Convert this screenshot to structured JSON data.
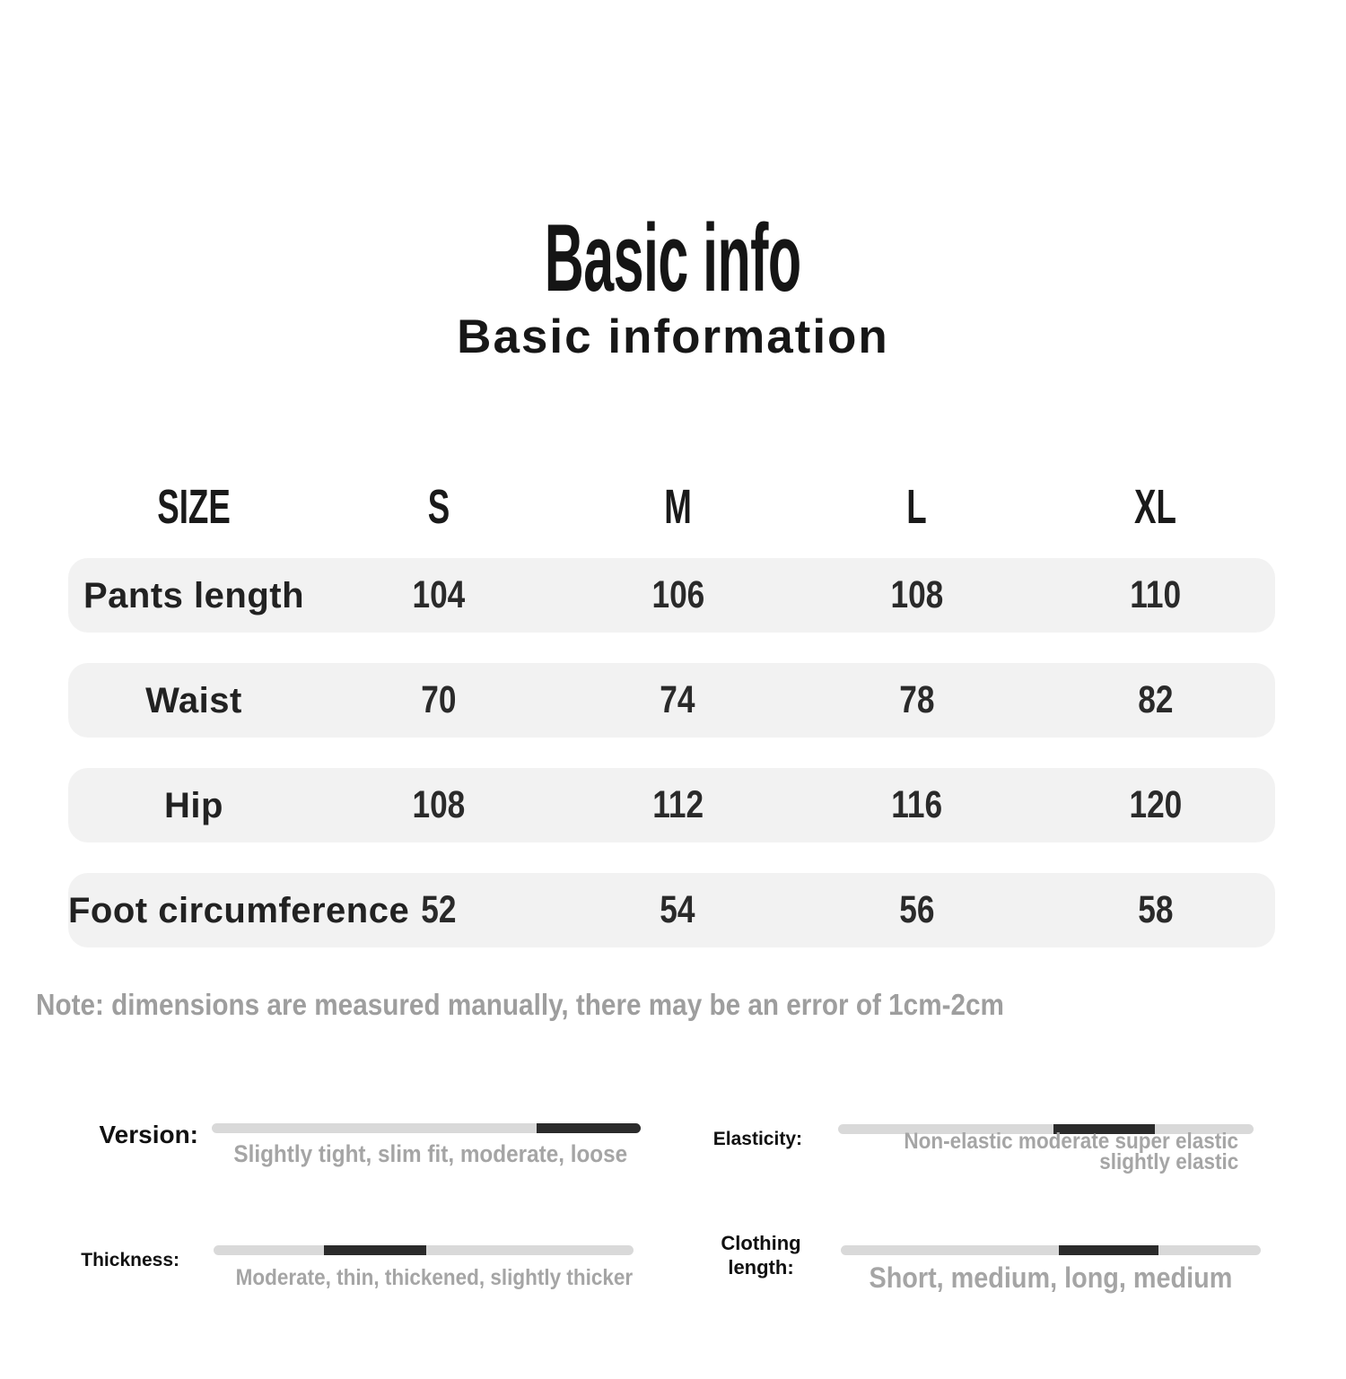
{
  "header": {
    "title": "Basic info",
    "subtitle": "Basic information"
  },
  "chart_data": {
    "type": "table",
    "title": "Basic info",
    "subtitle": "Basic information",
    "columns": [
      "SIZE",
      "S",
      "M",
      "L",
      "XL"
    ],
    "rows": [
      {
        "label": "Pants length",
        "values": [
          "104",
          "106",
          "108",
          "110"
        ]
      },
      {
        "label": "Waist",
        "values": [
          "70",
          "74",
          "78",
          "82"
        ]
      },
      {
        "label": "Hip",
        "values": [
          "108",
          "112",
          "116",
          "120"
        ]
      },
      {
        "label": "Foot circumference",
        "values": [
          "52",
          "54",
          "56",
          "58"
        ]
      }
    ],
    "note": "Note: dimensions are measured manually, there may be an error of 1cm-2cm"
  },
  "attributes": {
    "version": {
      "label": "Version:",
      "caption": "Slightly tight, slim fit, moderate, loose",
      "range_style": "left:75.7%;width:24.3%"
    },
    "elasticity": {
      "label": "Elasticity:",
      "caption_line1": "Non-elastic moderate super elastic",
      "caption_line2": "slightly elastic",
      "range_style": "left:51.8%;width:24.4%"
    },
    "thickness": {
      "label": "Thickness:",
      "caption": "Moderate, thin, thickened, slightly thicker",
      "range_style": "left:26.3%;width:24.4%"
    },
    "clothing_length": {
      "label": "Clothing length:",
      "caption": "Short, medium, long, medium",
      "range_style": "left:51.9%;width:23.8%"
    }
  },
  "colors": {
    "row_background": "#f2f2f2",
    "text": "#1c1c1c",
    "muted_text": "#a0a0a0",
    "track": "#d9d9d9",
    "track_active": "#2b2b2b"
  }
}
